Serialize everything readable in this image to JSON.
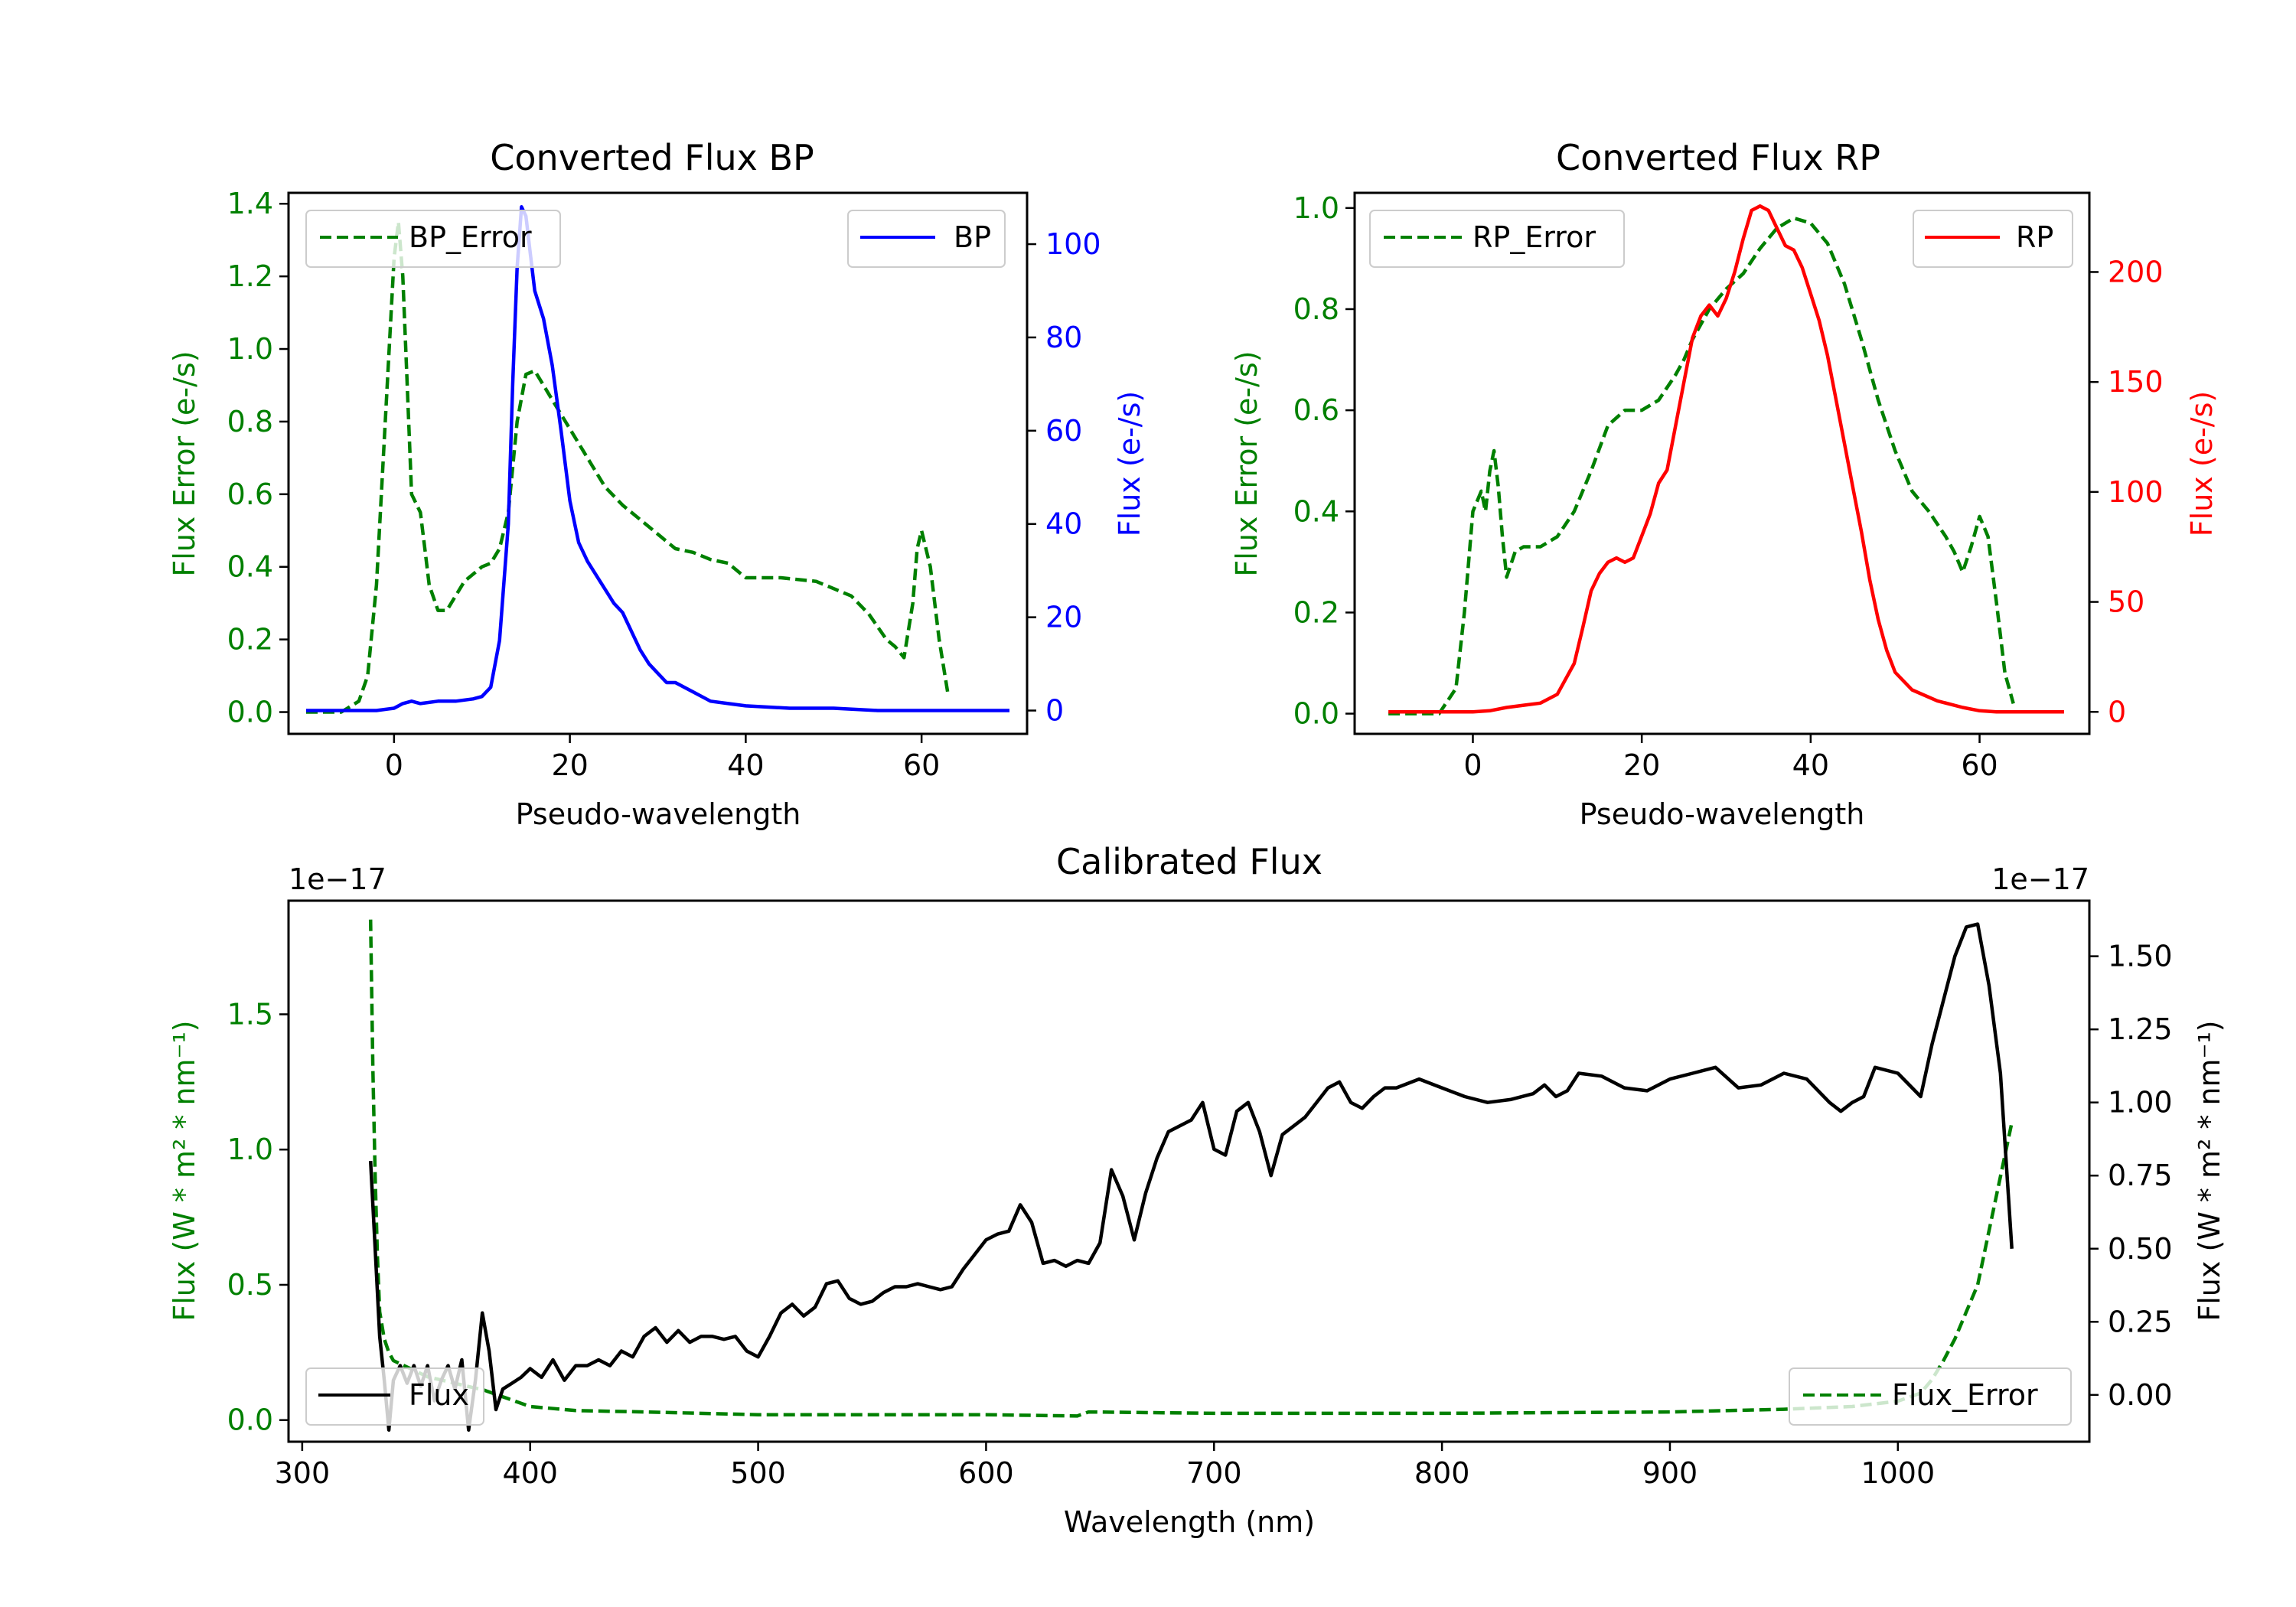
{
  "colors": {
    "bp": "#0000ff",
    "rp": "#ff0000",
    "error": "#008000",
    "flux": "#000000",
    "axes": "#000000"
  },
  "chart_data": [
    {
      "id": "bp",
      "type": "line",
      "title": "Converted Flux BP",
      "xlabel": "Pseudo-wavelength",
      "ylabel_left": "Flux Error (e-/s)",
      "ylabel_right": "Flux (e-/s)",
      "xlim": [
        -12,
        72
      ],
      "ylim_left": [
        -0.06,
        1.43
      ],
      "ylim_right": [
        -5,
        111
      ],
      "xticks": [
        0,
        20,
        40,
        60
      ],
      "xtick_labels": [
        "0",
        "20",
        "40",
        "60"
      ],
      "yticks_left": [
        0,
        0.2,
        0.4,
        0.6,
        0.8,
        1.0,
        1.2,
        1.4
      ],
      "ytick_labels_left": [
        "0.0",
        "0.2",
        "0.4",
        "0.6",
        "0.8",
        "1.0",
        "1.2",
        "1.4"
      ],
      "yticks_right": [
        0,
        20,
        40,
        60,
        80,
        100
      ],
      "ytick_labels_right": [
        "0",
        "20",
        "40",
        "60",
        "80",
        "100"
      ],
      "legend_left": {
        "label": "BP_Error",
        "placement": "upper left"
      },
      "legend_right": {
        "label": "BP",
        "placement": "upper right"
      },
      "series": [
        {
          "name": "BP_Error",
          "axis": "left",
          "style": "dashed",
          "x": [
            -10,
            -6,
            -4,
            -3,
            -2,
            -1,
            0,
            0.5,
            1,
            1.5,
            2,
            3,
            3.5,
            4,
            5,
            6,
            7,
            8,
            9,
            10,
            11,
            12,
            13,
            14,
            15,
            16,
            17,
            18,
            20,
            22,
            24,
            26,
            28,
            30,
            32,
            34,
            36,
            38,
            40,
            44,
            48,
            52,
            54,
            56,
            57,
            58,
            59,
            59.5,
            60,
            61,
            62,
            63
          ],
          "values": [
            0,
            0,
            0.03,
            0.1,
            0.35,
            0.8,
            1.25,
            1.35,
            1.2,
            0.9,
            0.6,
            0.55,
            0.45,
            0.35,
            0.28,
            0.28,
            0.32,
            0.36,
            0.38,
            0.4,
            0.41,
            0.45,
            0.55,
            0.8,
            0.93,
            0.94,
            0.9,
            0.86,
            0.78,
            0.7,
            0.62,
            0.57,
            0.53,
            0.49,
            0.45,
            0.44,
            0.42,
            0.41,
            0.37,
            0.37,
            0.36,
            0.32,
            0.27,
            0.2,
            0.18,
            0.15,
            0.3,
            0.45,
            0.5,
            0.4,
            0.2,
            0.05
          ]
        },
        {
          "name": "BP",
          "axis": "right",
          "style": "solid",
          "x": [
            -10,
            -5,
            -2,
            0,
            1,
            2,
            3,
            5,
            7,
            9,
            10,
            11,
            12,
            13,
            13.5,
            14,
            14.5,
            15,
            15.5,
            16,
            17,
            18,
            19,
            20,
            21,
            22,
            23,
            24,
            25,
            26,
            27,
            28,
            29,
            30,
            31,
            32,
            34,
            36,
            38,
            40,
            45,
            50,
            55,
            60,
            65,
            70
          ],
          "values": [
            0,
            0,
            0,
            0.5,
            1.5,
            2,
            1.5,
            2,
            2,
            2.5,
            3,
            5,
            15,
            40,
            70,
            95,
            108,
            106,
            98,
            90,
            84,
            74,
            60,
            45,
            36,
            32,
            29,
            26,
            23,
            21,
            17,
            13,
            10,
            8,
            6,
            6,
            4,
            2,
            1.5,
            1,
            0.5,
            0.5,
            0,
            0,
            0,
            0
          ]
        }
      ]
    },
    {
      "id": "rp",
      "type": "line",
      "title": "Converted Flux RP",
      "xlabel": "Pseudo-wavelength",
      "ylabel_left": "Flux Error (e-/s)",
      "ylabel_right": "Flux (e-/s)",
      "xlim": [
        -14,
        73
      ],
      "ylim_left": [
        -0.04,
        1.03
      ],
      "ylim_right": [
        -10,
        236
      ],
      "xticks": [
        0,
        20,
        40,
        60
      ],
      "xtick_labels": [
        "0",
        "20",
        "40",
        "60"
      ],
      "yticks_left": [
        0,
        0.2,
        0.4,
        0.6,
        0.8,
        1.0
      ],
      "ytick_labels_left": [
        "0.0",
        "0.2",
        "0.4",
        "0.6",
        "0.8",
        "1.0"
      ],
      "yticks_right": [
        0,
        50,
        100,
        150,
        200
      ],
      "ytick_labels_right": [
        "0",
        "50",
        "100",
        "150",
        "200"
      ],
      "legend_left": {
        "label": "RP_Error",
        "placement": "upper left"
      },
      "legend_right": {
        "label": "RP",
        "placement": "upper right"
      },
      "series": [
        {
          "name": "RP_Error",
          "axis": "left",
          "style": "dashed",
          "x": [
            -10,
            -4,
            -2,
            -1,
            0,
            1,
            1.5,
            2,
            2.5,
            3,
            3.5,
            4,
            5,
            6,
            8,
            10,
            12,
            14,
            16,
            18,
            20,
            22,
            24,
            25,
            26,
            28,
            30,
            32,
            34,
            36,
            38,
            40,
            42,
            44,
            46,
            48,
            50,
            52,
            54,
            56,
            57,
            58,
            59,
            60,
            61,
            62,
            63,
            64
          ],
          "values": [
            0,
            0,
            0.05,
            0.2,
            0.4,
            0.44,
            0.4,
            0.48,
            0.52,
            0.45,
            0.35,
            0.27,
            0.32,
            0.33,
            0.33,
            0.35,
            0.4,
            0.48,
            0.57,
            0.6,
            0.6,
            0.62,
            0.67,
            0.7,
            0.74,
            0.8,
            0.84,
            0.87,
            0.92,
            0.96,
            0.98,
            0.97,
            0.93,
            0.85,
            0.74,
            0.62,
            0.52,
            0.44,
            0.4,
            0.35,
            0.32,
            0.28,
            0.33,
            0.39,
            0.35,
            0.22,
            0.08,
            0.02
          ]
        },
        {
          "name": "RP",
          "axis": "right",
          "style": "solid",
          "x": [
            -10,
            0,
            2,
            4,
            6,
            8,
            10,
            12,
            13,
            14,
            15,
            16,
            17,
            18,
            19,
            20,
            21,
            22,
            23,
            24,
            25,
            26,
            27,
            28,
            29,
            30,
            31,
            32,
            33,
            34,
            35,
            36,
            37,
            38,
            39,
            40,
            41,
            42,
            43,
            44,
            45,
            46,
            47,
            48,
            49,
            50,
            52,
            55,
            58,
            60,
            62,
            64,
            70
          ],
          "values": [
            0,
            0,
            0.5,
            2,
            3,
            4,
            8,
            22,
            38,
            55,
            63,
            68,
            70,
            68,
            70,
            80,
            90,
            104,
            110,
            130,
            150,
            170,
            180,
            185,
            180,
            188,
            200,
            215,
            228,
            230,
            228,
            220,
            212,
            210,
            202,
            190,
            178,
            162,
            142,
            122,
            102,
            82,
            60,
            42,
            28,
            18,
            10,
            5,
            2,
            0.5,
            0,
            0,
            0
          ]
        }
      ]
    },
    {
      "id": "calibrated",
      "type": "line",
      "title": "Calibrated Flux",
      "xlabel": "Wavelength (nm)",
      "ylabel_left": "Flux (W * m² * nm⁻¹)",
      "ylabel_right": "Flux (W * m² * nm⁻¹)",
      "offset_text_left": "1e−17",
      "offset_text_right": "1e−17",
      "xlim": [
        294,
        1084
      ],
      "ylim_left": [
        -0.08,
        1.92
      ],
      "ylim_right": [
        -0.16,
        1.69
      ],
      "xticks": [
        300,
        400,
        500,
        600,
        700,
        800,
        900,
        1000
      ],
      "xtick_labels": [
        "300",
        "400",
        "500",
        "600",
        "700",
        "800",
        "900",
        "1000"
      ],
      "yticks_left": [
        0,
        0.5,
        1.0,
        1.5
      ],
      "ytick_labels_left": [
        "0.0",
        "0.5",
        "1.0",
        "1.5"
      ],
      "yticks_right": [
        0,
        0.25,
        0.5,
        0.75,
        1.0,
        1.25,
        1.5
      ],
      "ytick_labels_right": [
        "0.00",
        "0.25",
        "0.50",
        "0.75",
        "1.00",
        "1.25",
        "1.50"
      ],
      "legend_left": {
        "label": "Flux",
        "placement": "lower left"
      },
      "legend_right": {
        "label": "Flux_Error",
        "placement": "lower right"
      },
      "series": [
        {
          "name": "Flux_Error",
          "axis": "left",
          "style": "dashed",
          "x": [
            330,
            331,
            332,
            333,
            334,
            336,
            338,
            340,
            345,
            350,
            355,
            360,
            365,
            370,
            375,
            380,
            390,
            400,
            420,
            450,
            500,
            550,
            600,
            640,
            645,
            700,
            800,
            900,
            950,
            980,
            1000,
            1010,
            1015,
            1020,
            1025,
            1030,
            1035,
            1040,
            1045,
            1050
          ],
          "values": [
            1.85,
            1.3,
            0.9,
            0.6,
            0.4,
            0.3,
            0.25,
            0.22,
            0.2,
            0.18,
            0.16,
            0.15,
            0.14,
            0.13,
            0.12,
            0.11,
            0.08,
            0.05,
            0.035,
            0.03,
            0.02,
            0.02,
            0.02,
            0.015,
            0.03,
            0.025,
            0.025,
            0.03,
            0.04,
            0.05,
            0.07,
            0.1,
            0.15,
            0.22,
            0.3,
            0.4,
            0.5,
            0.7,
            0.9,
            1.1
          ]
        },
        {
          "name": "Flux",
          "axis": "right",
          "style": "solid",
          "x": [
            330,
            332,
            334,
            336,
            338,
            340,
            343,
            346,
            349,
            352,
            355,
            358,
            361,
            364,
            367,
            370,
            373,
            376,
            379,
            382,
            385,
            388,
            392,
            396,
            400,
            405,
            410,
            415,
            420,
            425,
            430,
            435,
            440,
            445,
            450,
            455,
            460,
            465,
            470,
            475,
            480,
            485,
            490,
            495,
            500,
            505,
            510,
            515,
            520,
            525,
            530,
            535,
            540,
            545,
            550,
            555,
            560,
            565,
            570,
            575,
            580,
            585,
            590,
            595,
            600,
            605,
            610,
            615,
            620,
            625,
            630,
            635,
            640,
            645,
            650,
            655,
            660,
            665,
            670,
            675,
            680,
            685,
            690,
            695,
            700,
            705,
            710,
            715,
            720,
            725,
            730,
            735,
            740,
            745,
            750,
            755,
            760,
            765,
            770,
            775,
            780,
            790,
            800,
            810,
            820,
            830,
            840,
            845,
            850,
            855,
            860,
            870,
            880,
            890,
            900,
            910,
            920,
            930,
            940,
            950,
            960,
            970,
            975,
            980,
            985,
            990,
            1000,
            1010,
            1015,
            1020,
            1025,
            1030,
            1035,
            1040,
            1045,
            1050
          ],
          "values": [
            0.8,
            0.5,
            0.2,
            0.05,
            -0.12,
            0.05,
            0.1,
            0.04,
            0.1,
            0.03,
            0.1,
            -0.02,
            0.05,
            0.1,
            0.02,
            0.12,
            -0.12,
            0.05,
            0.28,
            0.15,
            -0.05,
            0.02,
            0.04,
            0.06,
            0.09,
            0.06,
            0.12,
            0.05,
            0.1,
            0.1,
            0.12,
            0.1,
            0.15,
            0.13,
            0.2,
            0.23,
            0.18,
            0.22,
            0.18,
            0.2,
            0.2,
            0.19,
            0.2,
            0.15,
            0.13,
            0.2,
            0.28,
            0.31,
            0.27,
            0.3,
            0.38,
            0.39,
            0.33,
            0.31,
            0.32,
            0.35,
            0.37,
            0.37,
            0.38,
            0.37,
            0.36,
            0.37,
            0.43,
            0.48,
            0.53,
            0.55,
            0.56,
            0.65,
            0.59,
            0.45,
            0.46,
            0.44,
            0.46,
            0.45,
            0.52,
            0.77,
            0.68,
            0.53,
            0.69,
            0.81,
            0.9,
            0.92,
            0.94,
            1.0,
            0.84,
            0.82,
            0.97,
            1.0,
            0.9,
            0.75,
            0.89,
            0.92,
            0.95,
            1.0,
            1.05,
            1.07,
            1.0,
            0.98,
            1.02,
            1.05,
            1.05,
            1.08,
            1.05,
            1.02,
            1.0,
            1.01,
            1.03,
            1.06,
            1.02,
            1.04,
            1.1,
            1.09,
            1.05,
            1.04,
            1.08,
            1.1,
            1.12,
            1.05,
            1.06,
            1.1,
            1.08,
            1.0,
            0.97,
            1.0,
            1.02,
            1.12,
            1.1,
            1.02,
            1.2,
            1.35,
            1.5,
            1.6,
            1.61,
            1.4,
            1.1,
            0.5
          ]
        }
      ]
    }
  ]
}
